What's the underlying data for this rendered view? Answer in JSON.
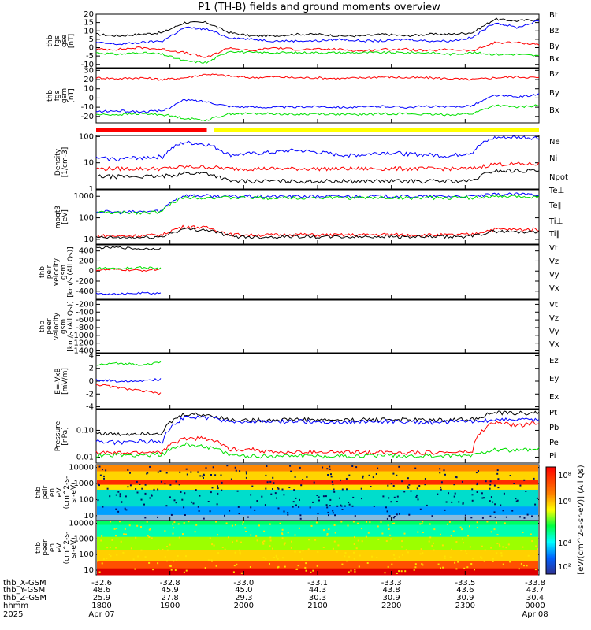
{
  "title": "P1 (TH-B) fields and ground moments overview",
  "colors": {
    "black": "#000000",
    "red": "#ff0000",
    "green": "#00e000",
    "blue": "#0000ff",
    "yellow": "#ffff00"
  },
  "chart_data": [
    {
      "type": "line",
      "ylabel_lines": [
        "thb",
        "fgs",
        "gse",
        "[nT]"
      ],
      "ylim": [
        -12,
        20
      ],
      "yticks": [
        -10,
        -5,
        0,
        5,
        10,
        15,
        20
      ],
      "series": [
        {
          "name": "Bt",
          "color": "black",
          "values": [
            8,
            7,
            8,
            9,
            15,
            15,
            9,
            7,
            7,
            8,
            8,
            7,
            7,
            8,
            7,
            8,
            8,
            9,
            17,
            16,
            17
          ]
        },
        {
          "name": "Bz",
          "color": "red",
          "values": [
            -1,
            -1,
            0,
            -1,
            -3,
            -6,
            0,
            -2,
            0,
            -1,
            -1,
            -1,
            -2,
            -1,
            -1,
            -2,
            -1,
            -2,
            3,
            3,
            2
          ]
        },
        {
          "name": "By",
          "color": "green",
          "values": [
            -3,
            -4,
            -3,
            -4,
            -8,
            -9,
            -2,
            -3,
            -3,
            -3,
            -3,
            -3,
            -3,
            -3,
            -3,
            -3,
            -4,
            -3,
            -4,
            -4,
            -5
          ]
        },
        {
          "name": "Bx",
          "color": "blue",
          "values": [
            3,
            2,
            3,
            4,
            12,
            11,
            6,
            5,
            4,
            4,
            4,
            5,
            4,
            4,
            5,
            4,
            4,
            6,
            15,
            12,
            16
          ]
        }
      ]
    },
    {
      "type": "line",
      "ylabel_lines": [
        "thb",
        "fgs",
        "gsm",
        "[nT]"
      ],
      "ylim": [
        -27,
        32
      ],
      "yticks": [
        -20,
        -10,
        0,
        10,
        20,
        30
      ],
      "series": [
        {
          "name": "Bz",
          "color": "red",
          "values": [
            22,
            21,
            22,
            20,
            22,
            26,
            24,
            22,
            23,
            22,
            22,
            21,
            22,
            23,
            22,
            22,
            21,
            20,
            22,
            23,
            22
          ]
        },
        {
          "name": "By",
          "color": "green",
          "values": [
            -18,
            -18,
            -17,
            -18,
            -22,
            -24,
            -17,
            -17,
            -17,
            -18,
            -17,
            -18,
            -18,
            -17,
            -17,
            -18,
            -18,
            -17,
            -8,
            -10,
            -8
          ]
        },
        {
          "name": "Bx",
          "color": "blue",
          "values": [
            -15,
            -14,
            -15,
            -14,
            -2,
            -4,
            -9,
            -10,
            -10,
            -10,
            -9,
            -10,
            -10,
            -9,
            -10,
            -9,
            -10,
            -8,
            3,
            1,
            4
          ]
        }
      ]
    },
    {
      "type": "line",
      "ylog": true,
      "ylabel_lines": [
        "Density",
        "[1/cm-3]"
      ],
      "ylim": [
        1,
        110
      ],
      "yticks": [
        1,
        10,
        100
      ],
      "series": [
        {
          "name": "Ne",
          "color": "red",
          "values": [
            6,
            6,
            6,
            6,
            7,
            7,
            6,
            6,
            6,
            6,
            6,
            6,
            6,
            6,
            6,
            6,
            6,
            6,
            9,
            9,
            9
          ]
        },
        {
          "name": "Ni",
          "color": "black",
          "values": [
            3,
            3,
            3,
            3,
            4,
            4,
            2,
            2,
            2,
            2,
            2,
            2,
            2,
            2,
            2,
            2,
            2,
            2,
            5,
            5,
            5
          ]
        },
        {
          "name": "Npot",
          "color": "blue",
          "values": [
            15,
            14,
            16,
            17,
            60,
            50,
            20,
            22,
            25,
            30,
            25,
            20,
            20,
            25,
            22,
            20,
            18,
            25,
            90,
            95,
            90
          ]
        }
      ]
    },
    {
      "type": "line",
      "ylog": true,
      "ylabel_lines": [
        "moqt3",
        "[eV]"
      ],
      "ylim": [
        6,
        2000
      ],
      "yticks": [
        10,
        100,
        1000
      ],
      "series": [
        {
          "name": "Te⊥",
          "color": "red",
          "values": [
            15,
            14,
            15,
            16,
            40,
            35,
            17,
            16,
            16,
            17,
            16,
            16,
            16,
            17,
            16,
            16,
            16,
            17,
            30,
            28,
            30
          ]
        },
        {
          "name": "Te‖",
          "color": "black",
          "values": [
            12,
            12,
            12,
            13,
            30,
            28,
            14,
            13,
            13,
            14,
            13,
            13,
            13,
            14,
            13,
            13,
            13,
            14,
            24,
            22,
            24
          ]
        },
        {
          "name": "Ti⊥",
          "color": "blue",
          "values": [
            200,
            180,
            190,
            210,
            1100,
            1050,
            1000,
            1000,
            980,
            990,
            1000,
            990,
            980,
            1000,
            990,
            980,
            1000,
            1000,
            1200,
            1250,
            1200
          ]
        },
        {
          "name": "Ti‖",
          "color": "green",
          "values": [
            180,
            170,
            175,
            190,
            900,
            880,
            850,
            860,
            840,
            850,
            860,
            850,
            840,
            860,
            850,
            840,
            860,
            870,
            950,
            980,
            960
          ]
        }
      ]
    },
    {
      "type": "line",
      "ylabel_lines": [
        "thb",
        "peir",
        "velocity",
        "gsm",
        "[km/s (All Qs)]"
      ],
      "ylim": [
        -560,
        520
      ],
      "yticks": [
        -400,
        -200,
        0,
        200,
        400
      ],
      "series": [
        {
          "name": "Vt",
          "color": "black",
          "values": [
            460,
            470,
            440,
            450,
            null,
            null,
            null,
            null,
            null,
            null,
            null,
            null,
            null,
            null,
            null,
            null,
            null,
            null,
            null,
            null,
            null
          ]
        },
        {
          "name": "Vz",
          "color": "red",
          "values": [
            20,
            30,
            10,
            40,
            null,
            null,
            null,
            null,
            null,
            null,
            null,
            null,
            null,
            null,
            null,
            null,
            null,
            null,
            null,
            null,
            null
          ]
        },
        {
          "name": "Vy",
          "color": "green",
          "values": [
            60,
            50,
            70,
            55,
            null,
            null,
            null,
            null,
            null,
            null,
            null,
            null,
            null,
            null,
            null,
            null,
            null,
            null,
            null,
            null,
            null
          ]
        },
        {
          "name": "Vx",
          "color": "blue",
          "values": [
            -440,
            -460,
            -440,
            -445,
            null,
            null,
            null,
            null,
            null,
            null,
            null,
            null,
            null,
            null,
            null,
            null,
            null,
            null,
            null,
            null,
            null
          ]
        }
      ]
    },
    {
      "type": "line",
      "ylabel_lines": [
        "thb",
        "peer",
        "velocity",
        "gsm",
        "[km/s (All Qs)]"
      ],
      "ylim": [
        -1450,
        -90
      ],
      "yticks": [
        -1400,
        -1200,
        -1000,
        -800,
        -600,
        -400,
        -200
      ],
      "series": [
        {
          "name": "Vt",
          "color": "black",
          "values": []
        },
        {
          "name": "Vz",
          "color": "red",
          "values": []
        },
        {
          "name": "Vy",
          "color": "green",
          "values": []
        },
        {
          "name": "Vx",
          "color": "blue",
          "values": []
        }
      ]
    },
    {
      "type": "line",
      "ylabel_lines": [
        "E=-VxB",
        "[mV/m]"
      ],
      "ylim": [
        -4.3,
        4.3
      ],
      "yticks": [
        -4,
        -2,
        0,
        2,
        4
      ],
      "series": [
        {
          "name": "Ez",
          "color": "red",
          "values": [
            -0.5,
            -1,
            -1.5,
            -2,
            null,
            null,
            null,
            null,
            null,
            null,
            null,
            null,
            null,
            null,
            null,
            null,
            null,
            null,
            null,
            null,
            null
          ]
        },
        {
          "name": "Ey",
          "color": "green",
          "values": [
            2.5,
            2.8,
            2.6,
            2.9,
            null,
            null,
            null,
            null,
            null,
            null,
            null,
            null,
            null,
            null,
            null,
            null,
            null,
            null,
            null,
            null,
            null
          ]
        },
        {
          "name": "Ex",
          "color": "blue",
          "values": [
            0.2,
            0,
            0.1,
            0.3,
            null,
            null,
            null,
            null,
            null,
            null,
            null,
            null,
            null,
            null,
            null,
            null,
            null,
            null,
            null,
            null,
            null
          ]
        }
      ]
    },
    {
      "type": "line",
      "ylog": true,
      "ylabel_lines": [
        "Pressure",
        "[nPa]"
      ],
      "ylim": [
        0.006,
        0.6
      ],
      "yticks": [
        0.01,
        0.1
      ],
      "ytick_labels": [
        "0.01",
        "0.10"
      ],
      "series": [
        {
          "name": "Pt",
          "color": "black",
          "values": [
            0.08,
            0.07,
            0.08,
            0.08,
            0.4,
            0.38,
            0.25,
            0.24,
            0.25,
            0.26,
            0.25,
            0.24,
            0.25,
            0.26,
            0.25,
            0.24,
            0.25,
            0.26,
            0.45,
            0.44,
            0.45
          ]
        },
        {
          "name": "Pb",
          "color": "red",
          "values": [
            0.015,
            0.014,
            0.015,
            0.016,
            0.05,
            0.05,
            0.02,
            0.02,
            0.015,
            0.015,
            0.016,
            0.015,
            0.015,
            0.016,
            0.015,
            0.015,
            0.015,
            0.016,
            0.2,
            0.15,
            0.19
          ]
        },
        {
          "name": "Pe",
          "color": "green",
          "values": [
            0.012,
            0.012,
            0.012,
            0.013,
            0.03,
            0.025,
            0.012,
            0.011,
            0.011,
            0.012,
            0.011,
            0.011,
            0.011,
            0.012,
            0.011,
            0.011,
            0.011,
            0.012,
            0.02,
            0.018,
            0.02
          ]
        },
        {
          "name": "Pi",
          "color": "blue",
          "values": [
            0.04,
            0.035,
            0.04,
            0.04,
            0.3,
            0.3,
            0.22,
            0.2,
            0.21,
            0.22,
            0.21,
            0.2,
            0.21,
            0.22,
            0.21,
            0.2,
            0.21,
            0.22,
            0.25,
            0.26,
            0.25
          ]
        }
      ]
    },
    {
      "type": "heatmap",
      "ylog": true,
      "ylabel_lines": [
        "thb",
        "peir",
        "en",
        "eV",
        "(cm^2-s-",
        "sr-eV)"
      ],
      "ylim": [
        5,
        15000
      ],
      "yticks": [
        10,
        100,
        1000,
        10000
      ],
      "ytick_labels": [
        "10",
        "100",
        "1000",
        "10000"
      ]
    },
    {
      "type": "heatmap",
      "ylog": true,
      "ylabel_lines": [
        "thb",
        "peer",
        "en",
        "eV",
        "(cm^2-s-",
        "sr-eV)"
      ],
      "ylim": [
        5,
        15000
      ],
      "yticks": [
        10,
        100,
        1000,
        10000
      ],
      "ytick_labels": [
        "10",
        "100",
        "1000",
        "10000"
      ]
    }
  ],
  "colorbar": {
    "label": "[eV/(cm^2-s-sr-eV)] (All Qs)",
    "tick_labels": [
      "10²",
      "10⁴",
      "10⁶",
      "10⁸"
    ]
  },
  "x_axis": {
    "row_labels": [
      "thb_X-GSM",
      "thb_Y-GSM",
      "thb_Z-GSM",
      "hhmm",
      "2025"
    ],
    "ticks": [
      {
        "x": "-32.6",
        "y": "48.6",
        "z": "25.9",
        "t": "1800",
        "d": "Apr 07"
      },
      {
        "x": "-32.8",
        "y": "45.9",
        "z": "27.8",
        "t": "1900",
        "d": ""
      },
      {
        "x": "-33.0",
        "y": "45.0",
        "z": "29.3",
        "t": "2000",
        "d": ""
      },
      {
        "x": "-33.1",
        "y": "44.3",
        "z": "30.3",
        "t": "2100",
        "d": ""
      },
      {
        "x": "-33.3",
        "y": "43.8",
        "z": "30.9",
        "t": "2200",
        "d": ""
      },
      {
        "x": "-33.5",
        "y": "43.6",
        "z": "30.9",
        "t": "2300",
        "d": ""
      },
      {
        "x": "-33.8",
        "y": "43.7",
        "z": "30.4",
        "t": "0000",
        "d": "Apr 08"
      }
    ]
  },
  "mode_bar": {
    "segments": [
      {
        "color": "red",
        "from_hour": 0,
        "to_hour": 1.5
      },
      {
        "color": "yellow",
        "from_hour": 1.6,
        "to_hour": 6.0
      }
    ]
  }
}
